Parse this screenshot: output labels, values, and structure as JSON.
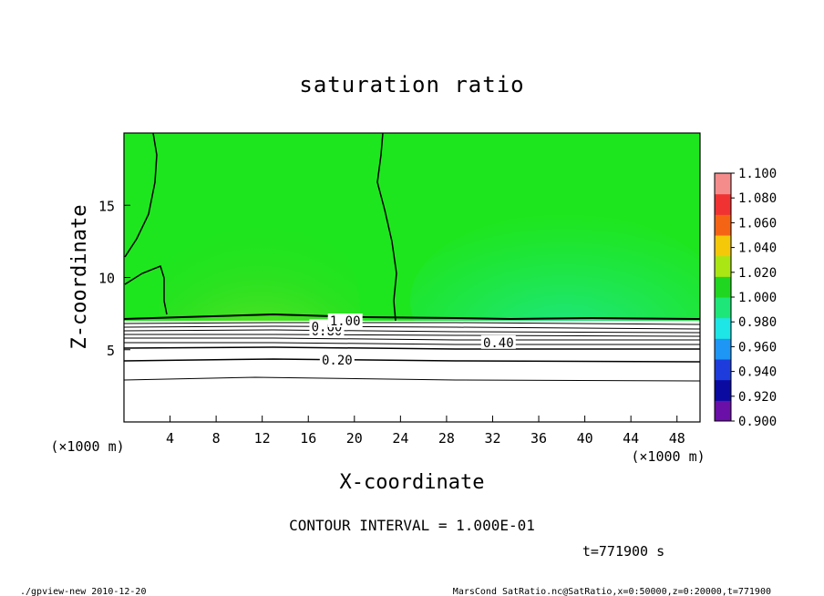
{
  "chart_data": {
    "type": "heatmap",
    "title": "saturation ratio",
    "xlabel": "X-coordinate",
    "ylabel": "Z-coordinate",
    "x_unit": "(×1000 m)",
    "y_unit": "(×1000 m)",
    "xlim": [
      0,
      50
    ],
    "ylim": [
      0,
      20
    ],
    "x_ticks": [
      4,
      8,
      12,
      16,
      20,
      24,
      28,
      32,
      36,
      40,
      44,
      48
    ],
    "y_ticks": [
      5,
      10,
      15
    ],
    "grid": false,
    "colorbar": {
      "placement": "right",
      "levels": [
        0.9,
        0.92,
        0.94,
        0.96,
        0.98,
        1.0,
        1.02,
        1.04,
        1.06,
        1.08,
        1.1
      ],
      "labels": [
        "0.900",
        "0.920",
        "0.940",
        "0.960",
        "0.980",
        "1.000",
        "1.020",
        "1.040",
        "1.060",
        "1.080",
        "1.100"
      ],
      "colors": [
        "#6a0fa8",
        "#0a0aa0",
        "#1e3cdc",
        "#1e96f5",
        "#1ee6e6",
        "#1ee678",
        "#20d620",
        "#aae614",
        "#f5c80a",
        "#f56414",
        "#f03232",
        "#f58c8c"
      ]
    },
    "contour_labels": [
      {
        "text": "0.20",
        "x": 18.5,
        "z": 4.3
      },
      {
        "text": "0.40",
        "x": 32.5,
        "z": 5.5
      },
      {
        "text": "0.80",
        "x": 17.6,
        "z": 6.3
      },
      {
        "text": "0.60",
        "x": 17.6,
        "z": 6.6
      },
      {
        "text": "1.00",
        "x": 19.2,
        "z": 7.0
      }
    ],
    "contour_interval_label": "CONTOUR INTERVAL = 1.000E-01",
    "time_label": "t=771900 s"
  },
  "footer": {
    "left": "./gpview-new  2010-12-20",
    "right": "MarsCond_SatRatio.nc@SatRatio,x=0:50000,z=0:20000,t=771900"
  }
}
